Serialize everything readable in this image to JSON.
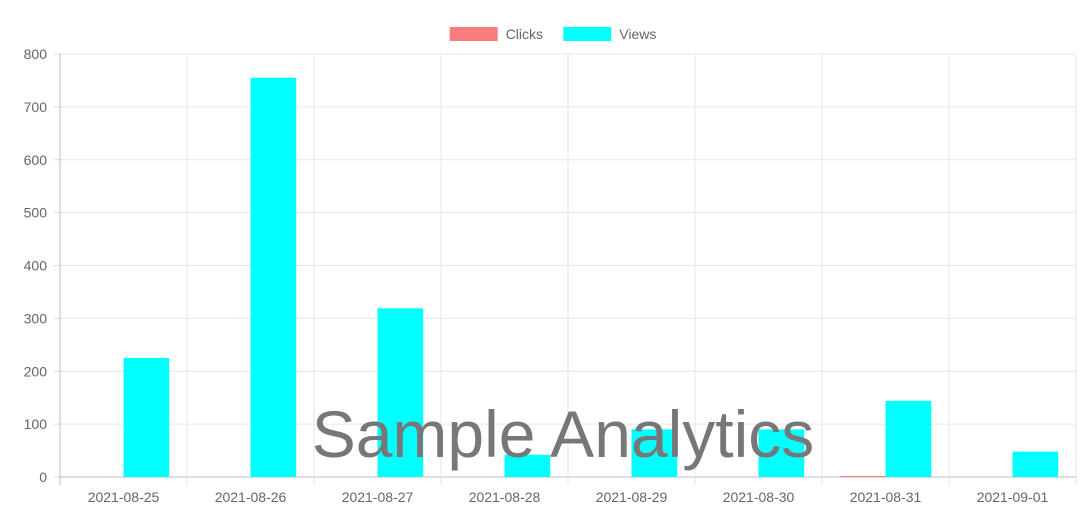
{
  "chart_data": {
    "type": "bar",
    "categories": [
      "2021-08-25",
      "2021-08-26",
      "2021-08-27",
      "2021-08-28",
      "2021-08-29",
      "2021-08-30",
      "2021-08-31",
      "2021-09-01"
    ],
    "series": [
      {
        "name": "Clicks",
        "color": "#f87c7c",
        "values": [
          0,
          0,
          0,
          0,
          0,
          0,
          2,
          0
        ]
      },
      {
        "name": "Views",
        "color": "#00ffff",
        "values": [
          225,
          755,
          319,
          42,
          90,
          90,
          144,
          48
        ]
      }
    ],
    "ylim": [
      0,
      800
    ],
    "yticks": [
      "0",
      "100",
      "200",
      "300",
      "400",
      "500",
      "600",
      "700",
      "800"
    ],
    "grid": true,
    "legend_position": "top-center",
    "watermark": "Sample Analytics"
  }
}
